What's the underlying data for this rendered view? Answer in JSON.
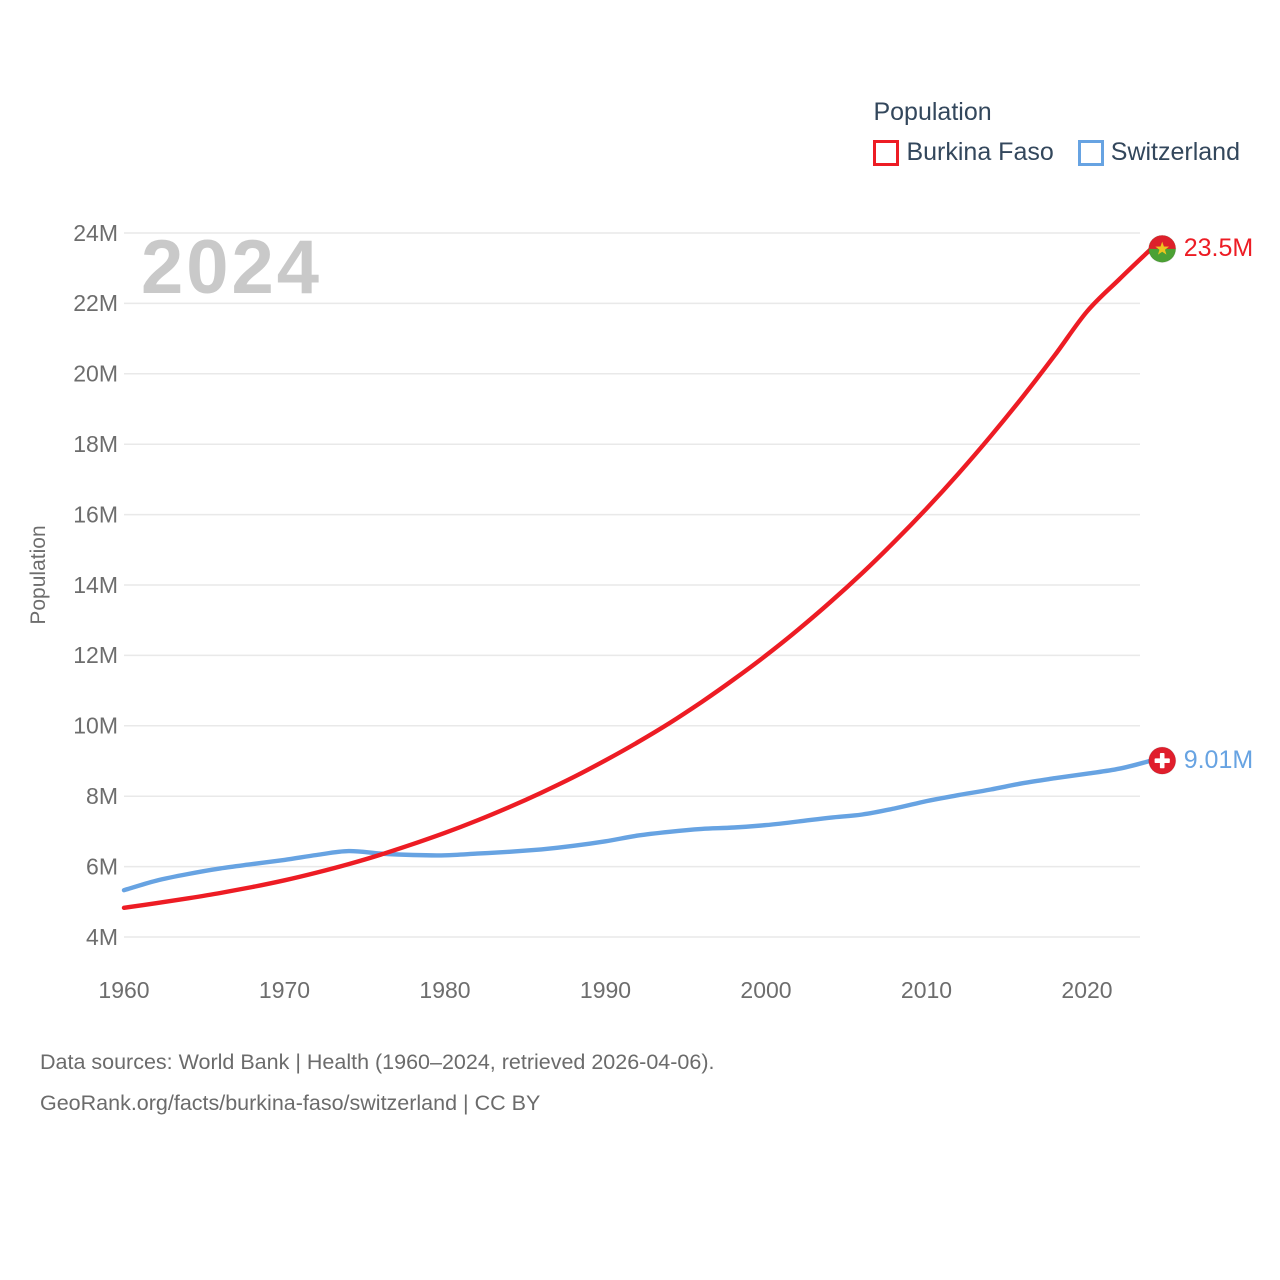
{
  "legend": {
    "title": "Population"
  },
  "y_axis": {
    "title": "Population"
  },
  "watermark": "2024",
  "footer": {
    "line1": "Data sources: World Bank | Health (1960–2024, retrieved 2026-04-06).",
    "line2": "GeoRank.org/facts/burkina-faso/switzerland | CC BY"
  },
  "colors": {
    "grid": "#e9e9e9",
    "tick_text": "#6d6d6d",
    "legend_text": "#33475c",
    "watermark": "#c9c9c9",
    "footer_text": "#6b6b6b",
    "burkina_line": "#ed1c24",
    "switzerland_line": "#67a3e2",
    "bf_flag_red": "#dd202b",
    "bf_flag_green": "#4ba134",
    "bf_flag_star": "#edc51f",
    "ch_flag_red": "#e01e2c",
    "ch_flag_cross": "#ffffff"
  },
  "chart_data": {
    "type": "line",
    "title": "Population",
    "ylabel": "Population",
    "xlabel": "",
    "watermark": "2024",
    "grid": true,
    "legend_position": "top-right",
    "xlim": [
      1960,
      2024
    ],
    "ylim": [
      4,
      24
    ],
    "yticks": [
      4,
      6,
      8,
      10,
      12,
      14,
      16,
      18,
      20,
      22,
      24
    ],
    "ytick_suffix": "M",
    "xticks": [
      1960,
      1970,
      1980,
      1990,
      2000,
      2010,
      2020
    ],
    "x": [
      1960,
      1962,
      1964,
      1966,
      1968,
      1970,
      1972,
      1974,
      1976,
      1978,
      1980,
      1982,
      1984,
      1986,
      1988,
      1990,
      1992,
      1994,
      1996,
      1998,
      2000,
      2002,
      2004,
      2006,
      2008,
      2010,
      2012,
      2014,
      2016,
      2018,
      2020,
      2022,
      2024
    ],
    "series": [
      {
        "name": "Burkina Faso",
        "color": "#ed1c24",
        "flag": "burkina-faso",
        "end_label": "23.5M",
        "end_value_millions": 23.5,
        "values": [
          4.83,
          4.96,
          5.1,
          5.25,
          5.42,
          5.61,
          5.83,
          6.07,
          6.34,
          6.64,
          6.96,
          7.31,
          7.69,
          8.1,
          8.54,
          9.02,
          9.53,
          10.08,
          10.68,
          11.32,
          12.0,
          12.73,
          13.51,
          14.34,
          15.23,
          16.17,
          17.17,
          18.23,
          19.35,
          20.53,
          21.77,
          22.68,
          23.55
        ]
      },
      {
        "name": "Switzerland",
        "color": "#67a3e2",
        "flag": "switzerland",
        "end_label": "9.01M",
        "end_value_millions": 9.01,
        "values": [
          5.33,
          5.6,
          5.79,
          5.95,
          6.07,
          6.19,
          6.33,
          6.44,
          6.37,
          6.33,
          6.32,
          6.37,
          6.42,
          6.49,
          6.59,
          6.72,
          6.88,
          6.99,
          7.07,
          7.11,
          7.18,
          7.28,
          7.39,
          7.48,
          7.65,
          7.86,
          8.03,
          8.19,
          8.37,
          8.51,
          8.64,
          8.78,
          9.01
        ]
      }
    ]
  }
}
